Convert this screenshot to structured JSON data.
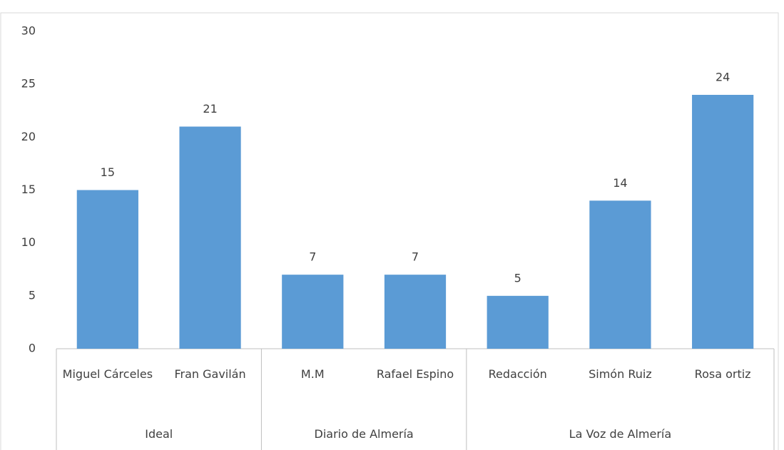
{
  "chart_data": {
    "type": "bar",
    "color": "#5b9bd5",
    "groups": [
      {
        "name": "Ideal",
        "categories": [
          "Miguel Cárceles",
          "Fran Gavilán"
        ],
        "values": [
          15,
          21
        ]
      },
      {
        "name": "Diario de Almería",
        "categories": [
          "M.M",
          "Rafael Espino"
        ],
        "values": [
          7,
          7
        ]
      },
      {
        "name": "La Voz de Almería",
        "categories": [
          "Redacción",
          "Simón Ruiz",
          "Rosa ortiz"
        ],
        "values": [
          5,
          14,
          24
        ]
      }
    ],
    "ylim": [
      0,
      30
    ],
    "yticks": [
      0,
      5,
      10,
      15,
      20,
      25,
      30
    ],
    "grid": false,
    "data_labels": true
  }
}
